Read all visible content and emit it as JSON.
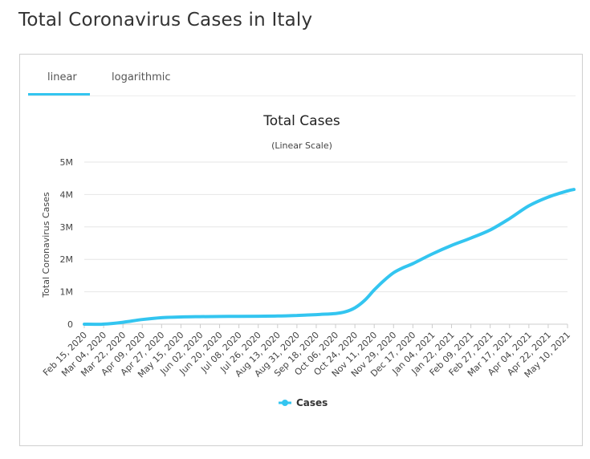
{
  "page": {
    "title": "Total Coronavirus Cases in Italy"
  },
  "tabs": [
    {
      "label": "linear",
      "active": true
    },
    {
      "label": "logarithmic",
      "active": false
    }
  ],
  "colors": {
    "accent": "#33c5f0",
    "series": "#33c5f0",
    "grid": "#e6e6e6"
  },
  "chart_data": {
    "type": "line",
    "title": "Total Cases",
    "subtitle": "(Linear Scale)",
    "ylabel": "Total Coronavirus Cases",
    "xlabel": "",
    "ylim": [
      0,
      5000000
    ],
    "yticks": [
      {
        "value": 0,
        "label": "0"
      },
      {
        "value": 1000000,
        "label": "1M"
      },
      {
        "value": 2000000,
        "label": "2M"
      },
      {
        "value": 3000000,
        "label": "3M"
      },
      {
        "value": 4000000,
        "label": "4M"
      },
      {
        "value": 5000000,
        "label": "5M"
      }
    ],
    "xticks": [
      "Feb 15, 2020",
      "Mar 04, 2020",
      "Mar 22, 2020",
      "Apr 09, 2020",
      "Apr 27, 2020",
      "May 15, 2020",
      "Jun 02, 2020",
      "Jun 20, 2020",
      "Jul 08, 2020",
      "Jul 26, 2020",
      "Aug 13, 2020",
      "Aug 31, 2020",
      "Sep 18, 2020",
      "Oct 06, 2020",
      "Oct 24, 2020",
      "Nov 11, 2020",
      "Nov 29, 2020",
      "Dec 17, 2020",
      "Jan 04, 2021",
      "Jan 22, 2021",
      "Feb 09, 2021",
      "Feb 27, 2021",
      "Mar 17, 2021",
      "Apr 04, 2021",
      "Apr 22, 2021",
      "May 10, 2021"
    ],
    "legend": {
      "position": "bottom",
      "entries": [
        "Cases"
      ]
    },
    "grid": true,
    "series": [
      {
        "name": "Cases",
        "points": [
          [
            "2020-02-15",
            3
          ],
          [
            "2020-03-04",
            3089
          ],
          [
            "2020-03-22",
            59138
          ],
          [
            "2020-04-09",
            143626
          ],
          [
            "2020-04-27",
            199414
          ],
          [
            "2020-05-15",
            223885
          ],
          [
            "2020-06-02",
            233515
          ],
          [
            "2020-06-20",
            238275
          ],
          [
            "2020-07-08",
            242149
          ],
          [
            "2020-07-26",
            246118
          ],
          [
            "2020-08-13",
            252235
          ],
          [
            "2020-08-31",
            269214
          ],
          [
            "2020-09-18",
            295705
          ],
          [
            "2020-10-06",
            330263
          ],
          [
            "2020-10-15",
            381602
          ],
          [
            "2020-10-24",
            504509
          ],
          [
            "2020-11-02",
            731588
          ],
          [
            "2020-11-11",
            1056000
          ],
          [
            "2020-11-20",
            1345000
          ],
          [
            "2020-11-29",
            1586000
          ],
          [
            "2020-12-08",
            1742000
          ],
          [
            "2020-12-17",
            1870000
          ],
          [
            "2021-01-04",
            2166000
          ],
          [
            "2021-01-22",
            2429000
          ],
          [
            "2021-02-09",
            2655000
          ],
          [
            "2021-02-27",
            2907000
          ],
          [
            "2021-03-17",
            3258000
          ],
          [
            "2021-04-04",
            3650000
          ],
          [
            "2021-04-22",
            3920000
          ],
          [
            "2021-05-10",
            4112000
          ],
          [
            "2021-05-16",
            4155000
          ]
        ]
      }
    ]
  }
}
